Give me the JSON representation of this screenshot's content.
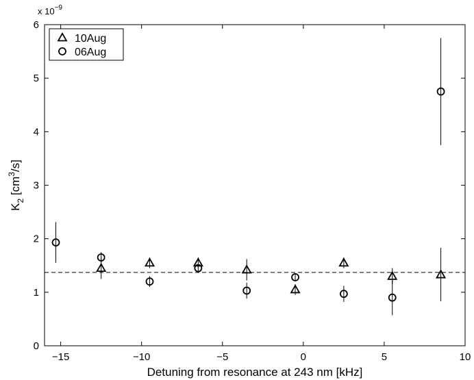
{
  "chart_data": {
    "type": "scatter",
    "title": "",
    "xlabel": "Detuning from resonance at 243 nm [kHz]",
    "ylabel_main": "K",
    "ylabel_sub": "2",
    "ylabel_unit_open": " [cm",
    "ylabel_unit_sup": "3",
    "ylabel_unit_close": "/s]",
    "y_multiplier_base": "x 10",
    "y_multiplier_exp": "−9",
    "xlim": [
      -16,
      10
    ],
    "ylim": [
      0,
      6
    ],
    "x_ticks": [
      -15,
      -10,
      -5,
      0,
      5,
      10
    ],
    "x_tick_labels": [
      "−15",
      "−10",
      "−5",
      "0",
      "5",
      "10"
    ],
    "y_ticks": [
      0,
      1,
      2,
      3,
      4,
      5,
      6
    ],
    "y_tick_labels": [
      "0",
      "1",
      "2",
      "3",
      "4",
      "5",
      "6"
    ],
    "grid": false,
    "legend_position": "top-left",
    "reference_line": {
      "y": 1.37,
      "style": "dashed"
    },
    "series": [
      {
        "name": "10Aug",
        "marker": "triangle",
        "points": [
          {
            "x": -12.5,
            "y": 1.45,
            "yerr": 0.2
          },
          {
            "x": -9.5,
            "y": 1.55,
            "yerr": 0.1
          },
          {
            "x": -6.5,
            "y": 1.55,
            "yerr": 0.1
          },
          {
            "x": -3.5,
            "y": 1.42,
            "yerr": 0.2
          },
          {
            "x": -0.5,
            "y": 1.05,
            "yerr": 0.1
          },
          {
            "x": 2.5,
            "y": 1.55,
            "yerr": 0.1
          },
          {
            "x": 5.5,
            "y": 1.3,
            "yerr": 0.15
          },
          {
            "x": 8.5,
            "y": 1.33,
            "yerr": 0.5
          }
        ]
      },
      {
        "name": "06Aug",
        "marker": "circle",
        "points": [
          {
            "x": -15.3,
            "y": 1.93,
            "yerr": 0.38
          },
          {
            "x": -12.5,
            "y": 1.65,
            "yerr": 0.1
          },
          {
            "x": -9.5,
            "y": 1.2,
            "yerr": 0.1
          },
          {
            "x": -6.5,
            "y": 1.45,
            "yerr": 0.05
          },
          {
            "x": -3.5,
            "y": 1.03,
            "yerr": 0.15
          },
          {
            "x": -0.5,
            "y": 1.28,
            "yerr": 0.05
          },
          {
            "x": 2.5,
            "y": 0.97,
            "yerr": 0.15
          },
          {
            "x": 5.5,
            "y": 0.9,
            "yerr": 0.33
          },
          {
            "x": 8.5,
            "y": 4.75,
            "yerr": 1.0
          }
        ]
      }
    ]
  }
}
